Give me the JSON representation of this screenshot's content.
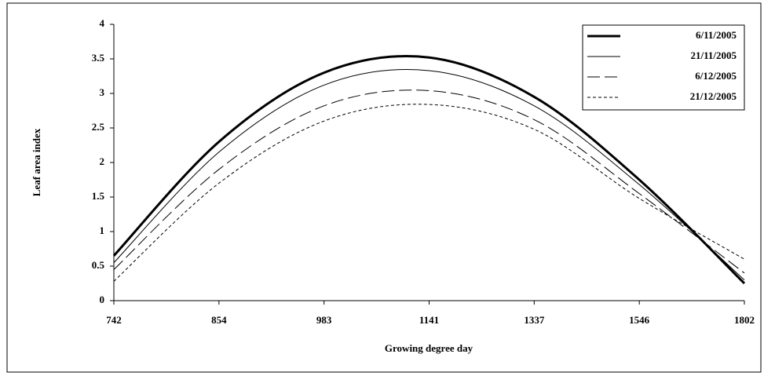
{
  "chart_data": {
    "type": "line",
    "x_label": "Growing degree day",
    "y_label": "Leaf area index",
    "categories": [
      "742",
      "854",
      "983",
      "1141",
      "1337",
      "1546",
      "1802"
    ],
    "series": [
      {
        "name": "6/11/2005",
        "color": "#000000",
        "line_style": "solid",
        "line_width": 3,
        "values": [
          0.65,
          2.3,
          3.3,
          3.52,
          2.95,
          1.75,
          0.25
        ]
      },
      {
        "name": "21/11/2005",
        "color": "#000000",
        "line_style": "solid",
        "line_width": 1,
        "values": [
          0.55,
          2.15,
          3.12,
          3.33,
          2.82,
          1.68,
          0.3
        ]
      },
      {
        "name": "6/12/2005",
        "color": "#000000",
        "line_style": "long-dash",
        "line_width": 1,
        "values": [
          0.45,
          1.9,
          2.82,
          3.04,
          2.62,
          1.55,
          0.4
        ]
      },
      {
        "name": "21/12/2005",
        "color": "#000000",
        "line_style": "short-dash",
        "line_width": 1,
        "values": [
          0.28,
          1.7,
          2.6,
          2.84,
          2.48,
          1.48,
          0.6
        ]
      }
    ],
    "ylim": [
      0,
      4
    ],
    "yticks": [
      0,
      0.5,
      1,
      1.5,
      2,
      2.5,
      3,
      3.5,
      4
    ],
    "grid": false,
    "legend": "upper-right"
  }
}
